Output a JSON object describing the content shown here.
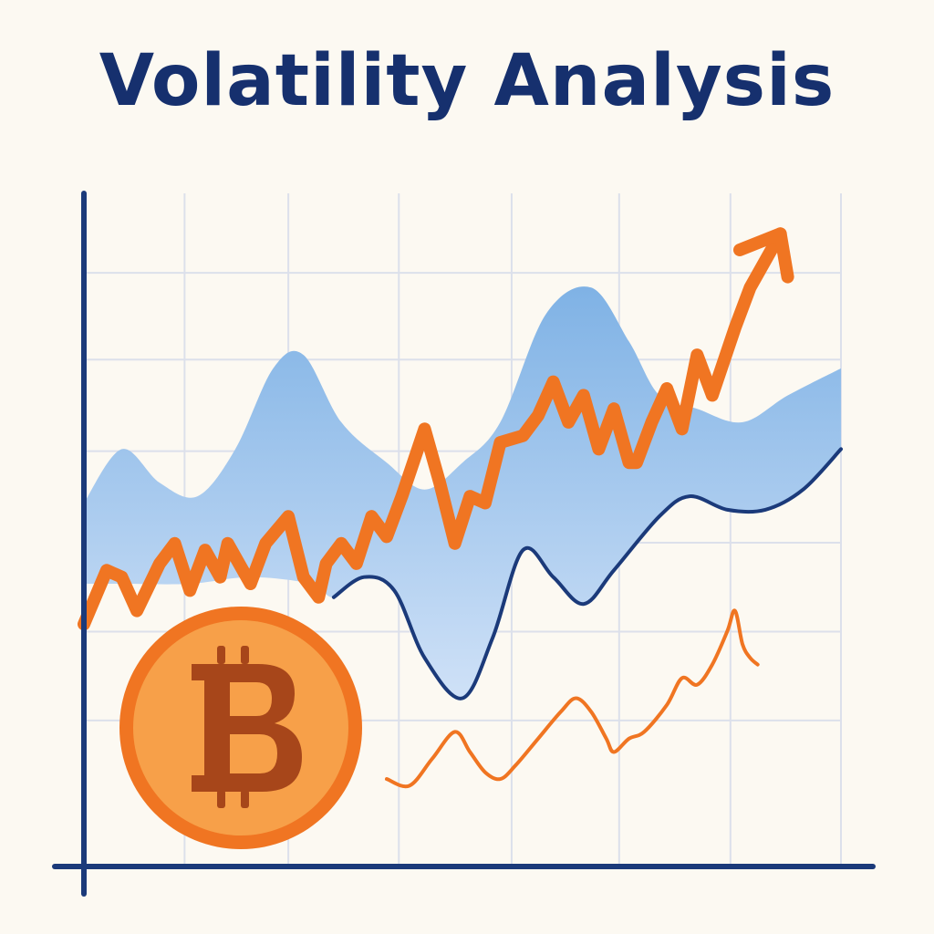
{
  "title": "Volatility Analysis",
  "chart_data": {
    "type": "area",
    "title": "Volatility Analysis",
    "xlabel": "",
    "ylabel": "",
    "xlim": [
      0,
      100
    ],
    "ylim": [
      0,
      100
    ],
    "grid": true,
    "ticks_labeled": false,
    "colors": {
      "background": "#FCF9F2",
      "grid": "#DCE0EB",
      "axis": "#1B3A7A",
      "band_top": "#7FB2E5",
      "band_bottom": "#CFE1F7",
      "band_outline": "#1B3A7A",
      "price": "#F07522",
      "small_line": "#F07522",
      "coin_fill": "#F7A049",
      "coin_ring": "#F07522",
      "coin_symbol": "#A7461A"
    },
    "x_gridlines": [
      13.3,
      27.0,
      41.6,
      56.5,
      70.7,
      85.4,
      100
    ],
    "y_gridlines": [
      21.7,
      34.9,
      48.1,
      61.7,
      75.3,
      88.2
    ],
    "band": {
      "upper": [
        [
          0,
          54
        ],
        [
          5,
          62
        ],
        [
          10,
          57
        ],
        [
          15,
          55
        ],
        [
          20,
          62
        ],
        [
          25,
          74
        ],
        [
          29,
          76
        ],
        [
          34,
          66
        ],
        [
          40,
          60
        ],
        [
          45,
          56
        ],
        [
          50,
          60
        ],
        [
          55,
          66
        ],
        [
          61,
          82
        ],
        [
          67,
          86
        ],
        [
          72,
          78
        ],
        [
          76,
          70
        ],
        [
          81,
          68
        ],
        [
          87,
          66
        ],
        [
          93,
          70
        ],
        [
          100,
          74
        ]
      ],
      "lower": [
        [
          100,
          62
        ],
        [
          95,
          56
        ],
        [
          90,
          53
        ],
        [
          85,
          53
        ],
        [
          80,
          55
        ],
        [
          76,
          52
        ],
        [
          70,
          44
        ],
        [
          66,
          39
        ],
        [
          62,
          43
        ],
        [
          58,
          47
        ],
        [
          54,
          34
        ],
        [
          50,
          25
        ],
        [
          45,
          31
        ],
        [
          41,
          41
        ],
        [
          37,
          43
        ],
        [
          33,
          40
        ],
        [
          30,
          42
        ],
        [
          22,
          43
        ],
        [
          14,
          42
        ],
        [
          5,
          42
        ],
        [
          0,
          42
        ]
      ]
    },
    "series": [
      {
        "style": "thick",
        "color": "#F07522",
        "arrow": true,
        "points": [
          [
            0,
            36
          ],
          [
            3,
            44
          ],
          [
            5,
            43
          ],
          [
            7,
            38
          ],
          [
            10,
            45
          ],
          [
            12,
            48
          ],
          [
            14,
            41
          ],
          [
            16,
            47
          ],
          [
            18,
            43
          ],
          [
            19,
            48
          ],
          [
            22,
            42
          ],
          [
            24,
            48
          ],
          [
            27,
            52
          ],
          [
            29,
            43
          ],
          [
            31,
            40
          ],
          [
            32,
            45
          ],
          [
            34,
            48
          ],
          [
            36,
            45
          ],
          [
            38,
            52
          ],
          [
            40,
            49
          ],
          [
            42,
            55
          ],
          [
            45,
            65
          ],
          [
            47,
            57
          ],
          [
            49,
            48
          ],
          [
            51,
            55
          ],
          [
            53,
            54
          ],
          [
            55,
            63
          ],
          [
            58,
            64
          ],
          [
            60,
            67
          ],
          [
            62,
            72
          ],
          [
            64,
            66
          ],
          [
            66,
            70
          ],
          [
            68,
            62
          ],
          [
            70,
            68
          ],
          [
            72,
            60
          ],
          [
            73,
            60
          ],
          [
            75,
            66
          ],
          [
            77,
            71
          ],
          [
            79,
            65
          ],
          [
            81,
            76
          ],
          [
            83,
            70
          ],
          [
            86,
            80
          ],
          [
            88,
            86
          ],
          [
            90,
            90
          ],
          [
            92,
            94
          ]
        ]
      },
      {
        "style": "thin",
        "color": "#F07522",
        "arrow": false,
        "points": [
          [
            40,
            13
          ],
          [
            43,
            12
          ],
          [
            46,
            16
          ],
          [
            49,
            20
          ],
          [
            51,
            17
          ],
          [
            53,
            14
          ],
          [
            55,
            13
          ],
          [
            57,
            15
          ],
          [
            60,
            19
          ],
          [
            63,
            23
          ],
          [
            65,
            25
          ],
          [
            67,
            23
          ],
          [
            69,
            19
          ],
          [
            70,
            17
          ],
          [
            72,
            19
          ],
          [
            74,
            20
          ],
          [
            77,
            24
          ],
          [
            79,
            28
          ],
          [
            81,
            27
          ],
          [
            83,
            30
          ],
          [
            85,
            35
          ],
          [
            86,
            38
          ],
          [
            87,
            33
          ],
          [
            88,
            31
          ],
          [
            89,
            30
          ]
        ]
      }
    ]
  }
}
